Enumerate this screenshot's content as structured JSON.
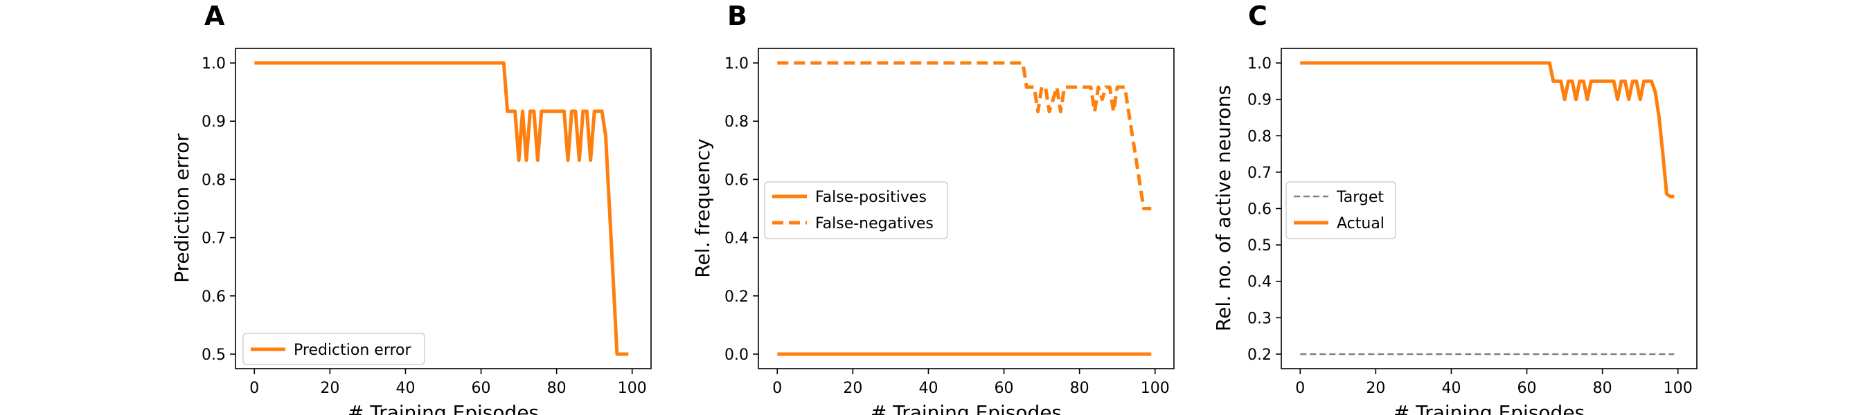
{
  "chart_data": [
    {
      "panel": "A",
      "type": "line",
      "xlabel": "# Training Episodes",
      "ylabel": "Prediction error",
      "xlim": [
        -5,
        105
      ],
      "ylim": [
        0.475,
        1.025
      ],
      "xticks": [
        0,
        20,
        40,
        60,
        80,
        100
      ],
      "yticks": [
        0.5,
        0.6,
        0.7,
        0.8,
        0.9,
        1.0
      ],
      "legend_position": "bottom-left",
      "series": [
        {
          "name": "Prediction error",
          "style": "solid",
          "color": "#ff7f0e",
          "x": [
            0,
            66,
            67,
            68,
            69,
            70,
            71,
            72,
            73,
            74,
            75,
            76,
            77,
            78,
            79,
            80,
            81,
            82,
            83,
            84,
            85,
            86,
            87,
            88,
            89,
            90,
            91,
            92,
            93,
            94,
            95,
            96,
            97,
            98,
            99
          ],
          "y": [
            1.0,
            1.0,
            0.917,
            0.917,
            0.917,
            0.833,
            0.917,
            0.833,
            0.917,
            0.917,
            0.833,
            0.917,
            0.917,
            0.917,
            0.917,
            0.917,
            0.917,
            0.917,
            0.833,
            0.917,
            0.917,
            0.833,
            0.917,
            0.917,
            0.833,
            0.917,
            0.917,
            0.917,
            0.875,
            0.75,
            0.625,
            0.5,
            0.5,
            0.5,
            0.5
          ]
        }
      ]
    },
    {
      "panel": "B",
      "type": "line",
      "xlabel": "# Training Episodes",
      "ylabel": "Rel. frequency",
      "xlim": [
        -5,
        105
      ],
      "ylim": [
        -0.05,
        1.05
      ],
      "xticks": [
        0,
        20,
        40,
        60,
        80,
        100
      ],
      "yticks": [
        0.0,
        0.2,
        0.4,
        0.6,
        0.8,
        1.0
      ],
      "legend_position": "center-left",
      "series": [
        {
          "name": "False-positives",
          "style": "solid",
          "color": "#ff7f0e",
          "x": [
            0,
            99
          ],
          "y": [
            0.0,
            0.0
          ]
        },
        {
          "name": "False-negatives",
          "style": "dashed",
          "color": "#ff7f0e",
          "x": [
            0,
            65,
            66,
            67,
            68,
            69,
            70,
            71,
            72,
            73,
            74,
            75,
            76,
            77,
            78,
            79,
            80,
            81,
            82,
            83,
            84,
            85,
            86,
            87,
            88,
            89,
            90,
            91,
            92,
            93,
            94,
            95,
            96,
            97,
            98,
            99
          ],
          "y": [
            1.0,
            1.0,
            0.917,
            0.917,
            0.917,
            0.833,
            0.917,
            0.917,
            0.833,
            0.875,
            0.917,
            0.833,
            0.917,
            0.917,
            0.917,
            0.917,
            0.917,
            0.917,
            0.917,
            0.917,
            0.833,
            0.917,
            0.875,
            0.917,
            0.917,
            0.833,
            0.917,
            0.917,
            0.917,
            0.833,
            0.75,
            0.667,
            0.583,
            0.5,
            0.5,
            0.5
          ]
        }
      ]
    },
    {
      "panel": "C",
      "type": "line",
      "xlabel": "# Training Episodes",
      "ylabel": "Rel. no. of active neurons",
      "xlim": [
        -5,
        105
      ],
      "ylim": [
        0.16,
        1.04
      ],
      "xticks": [
        0,
        20,
        40,
        60,
        80,
        100
      ],
      "yticks": [
        0.2,
        0.3,
        0.4,
        0.5,
        0.6,
        0.7,
        0.8,
        0.9,
        1.0
      ],
      "legend_position": "center-left",
      "series": [
        {
          "name": "Target",
          "style": "dashed-thin",
          "color": "#808080",
          "x": [
            0,
            99
          ],
          "y": [
            0.2,
            0.2
          ]
        },
        {
          "name": "Actual",
          "style": "solid",
          "color": "#ff7f0e",
          "x": [
            0,
            66,
            67,
            68,
            69,
            70,
            71,
            72,
            73,
            74,
            75,
            76,
            77,
            78,
            79,
            80,
            81,
            82,
            83,
            84,
            85,
            86,
            87,
            88,
            89,
            90,
            91,
            92,
            93,
            94,
            95,
            96,
            97,
            98,
            99
          ],
          "y": [
            1.0,
            1.0,
            0.95,
            0.95,
            0.95,
            0.9,
            0.95,
            0.95,
            0.9,
            0.95,
            0.95,
            0.9,
            0.95,
            0.95,
            0.95,
            0.95,
            0.95,
            0.95,
            0.95,
            0.9,
            0.95,
            0.95,
            0.9,
            0.95,
            0.95,
            0.9,
            0.95,
            0.95,
            0.95,
            0.92,
            0.85,
            0.75,
            0.64,
            0.633,
            0.633
          ]
        }
      ]
    }
  ]
}
